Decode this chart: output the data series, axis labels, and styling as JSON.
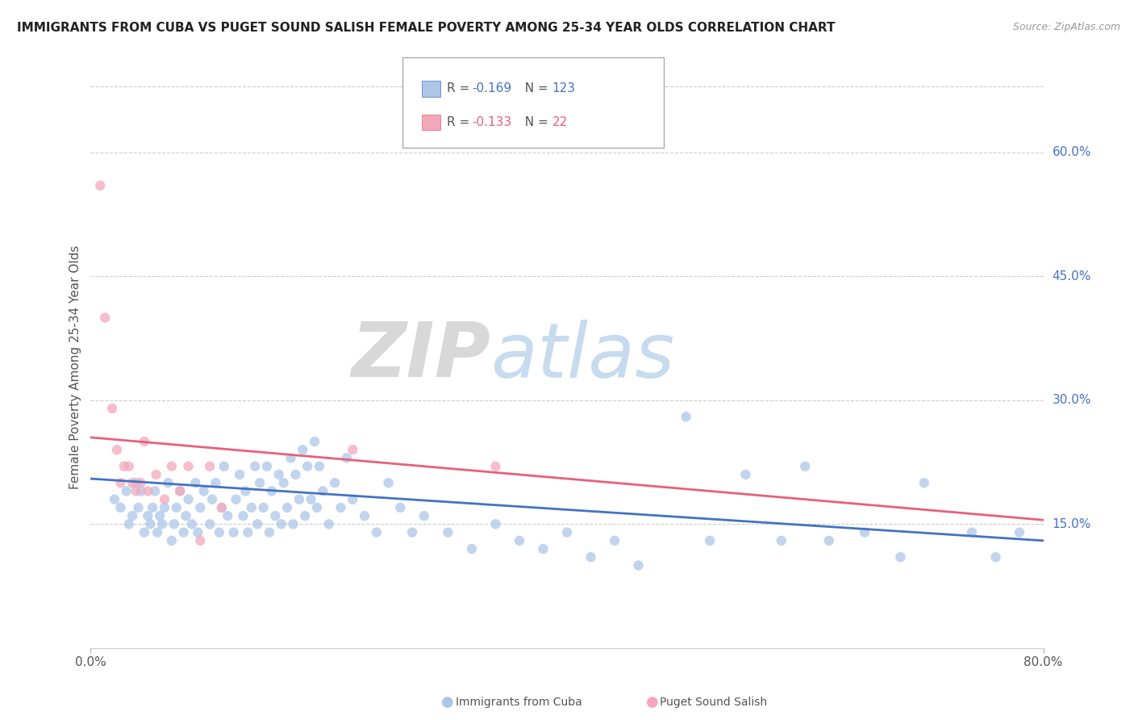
{
  "title": "IMMIGRANTS FROM CUBA VS PUGET SOUND SALISH FEMALE POVERTY AMONG 25-34 YEAR OLDS CORRELATION CHART",
  "source": "Source: ZipAtlas.com",
  "ylabel": "Female Poverty Among 25-34 Year Olds",
  "xlim": [
    0.0,
    0.8
  ],
  "ylim": [
    0.0,
    0.68
  ],
  "ytick_right_labels": [
    "15.0%",
    "30.0%",
    "45.0%",
    "60.0%"
  ],
  "ytick_right_values": [
    0.15,
    0.3,
    0.45,
    0.6
  ],
  "legend_R_blue": "-0.169",
  "legend_N_blue": "123",
  "legend_R_pink": "-0.133",
  "legend_N_pink": "22",
  "color_blue": "#adc6e8",
  "color_pink": "#f4a8bc",
  "line_blue": "#4472c4",
  "line_pink": "#e8607a",
  "watermark_zip": "ZIP",
  "watermark_atlas": "atlas",
  "blue_trend_x": [
    0.0,
    0.8
  ],
  "blue_trend_y": [
    0.205,
    0.13
  ],
  "pink_trend_x": [
    0.0,
    0.8
  ],
  "pink_trend_y": [
    0.255,
    0.155
  ],
  "blue_scatter_x": [
    0.02,
    0.025,
    0.03,
    0.032,
    0.035,
    0.038,
    0.04,
    0.042,
    0.045,
    0.048,
    0.05,
    0.052,
    0.054,
    0.056,
    0.058,
    0.06,
    0.062,
    0.065,
    0.068,
    0.07,
    0.072,
    0.075,
    0.078,
    0.08,
    0.082,
    0.085,
    0.088,
    0.09,
    0.092,
    0.095,
    0.1,
    0.102,
    0.105,
    0.108,
    0.11,
    0.112,
    0.115,
    0.12,
    0.122,
    0.125,
    0.128,
    0.13,
    0.132,
    0.135,
    0.138,
    0.14,
    0.142,
    0.145,
    0.148,
    0.15,
    0.152,
    0.155,
    0.158,
    0.16,
    0.162,
    0.165,
    0.168,
    0.17,
    0.172,
    0.175,
    0.178,
    0.18,
    0.182,
    0.185,
    0.188,
    0.19,
    0.192,
    0.195,
    0.2,
    0.205,
    0.21,
    0.215,
    0.22,
    0.23,
    0.24,
    0.25,
    0.26,
    0.27,
    0.28,
    0.3,
    0.32,
    0.34,
    0.36,
    0.38,
    0.4,
    0.42,
    0.44,
    0.46,
    0.5,
    0.52,
    0.55,
    0.58,
    0.6,
    0.62,
    0.65,
    0.68,
    0.7,
    0.74,
    0.76,
    0.78
  ],
  "blue_scatter_y": [
    0.18,
    0.17,
    0.19,
    0.15,
    0.16,
    0.2,
    0.17,
    0.19,
    0.14,
    0.16,
    0.15,
    0.17,
    0.19,
    0.14,
    0.16,
    0.15,
    0.17,
    0.2,
    0.13,
    0.15,
    0.17,
    0.19,
    0.14,
    0.16,
    0.18,
    0.15,
    0.2,
    0.14,
    0.17,
    0.19,
    0.15,
    0.18,
    0.2,
    0.14,
    0.17,
    0.22,
    0.16,
    0.14,
    0.18,
    0.21,
    0.16,
    0.19,
    0.14,
    0.17,
    0.22,
    0.15,
    0.2,
    0.17,
    0.22,
    0.14,
    0.19,
    0.16,
    0.21,
    0.15,
    0.2,
    0.17,
    0.23,
    0.15,
    0.21,
    0.18,
    0.24,
    0.16,
    0.22,
    0.18,
    0.25,
    0.17,
    0.22,
    0.19,
    0.15,
    0.2,
    0.17,
    0.23,
    0.18,
    0.16,
    0.14,
    0.2,
    0.17,
    0.14,
    0.16,
    0.14,
    0.12,
    0.15,
    0.13,
    0.12,
    0.14,
    0.11,
    0.13,
    0.1,
    0.28,
    0.13,
    0.21,
    0.13,
    0.22,
    0.13,
    0.14,
    0.11,
    0.2,
    0.14,
    0.11,
    0.14
  ],
  "pink_scatter_x": [
    0.008,
    0.012,
    0.018,
    0.022,
    0.025,
    0.028,
    0.032,
    0.035,
    0.038,
    0.042,
    0.045,
    0.048,
    0.055,
    0.062,
    0.068,
    0.075,
    0.082,
    0.092,
    0.1,
    0.11,
    0.22,
    0.34
  ],
  "pink_scatter_y": [
    0.56,
    0.4,
    0.29,
    0.24,
    0.2,
    0.22,
    0.22,
    0.2,
    0.19,
    0.2,
    0.25,
    0.19,
    0.21,
    0.18,
    0.22,
    0.19,
    0.22,
    0.13,
    0.22,
    0.17,
    0.24,
    0.22
  ]
}
